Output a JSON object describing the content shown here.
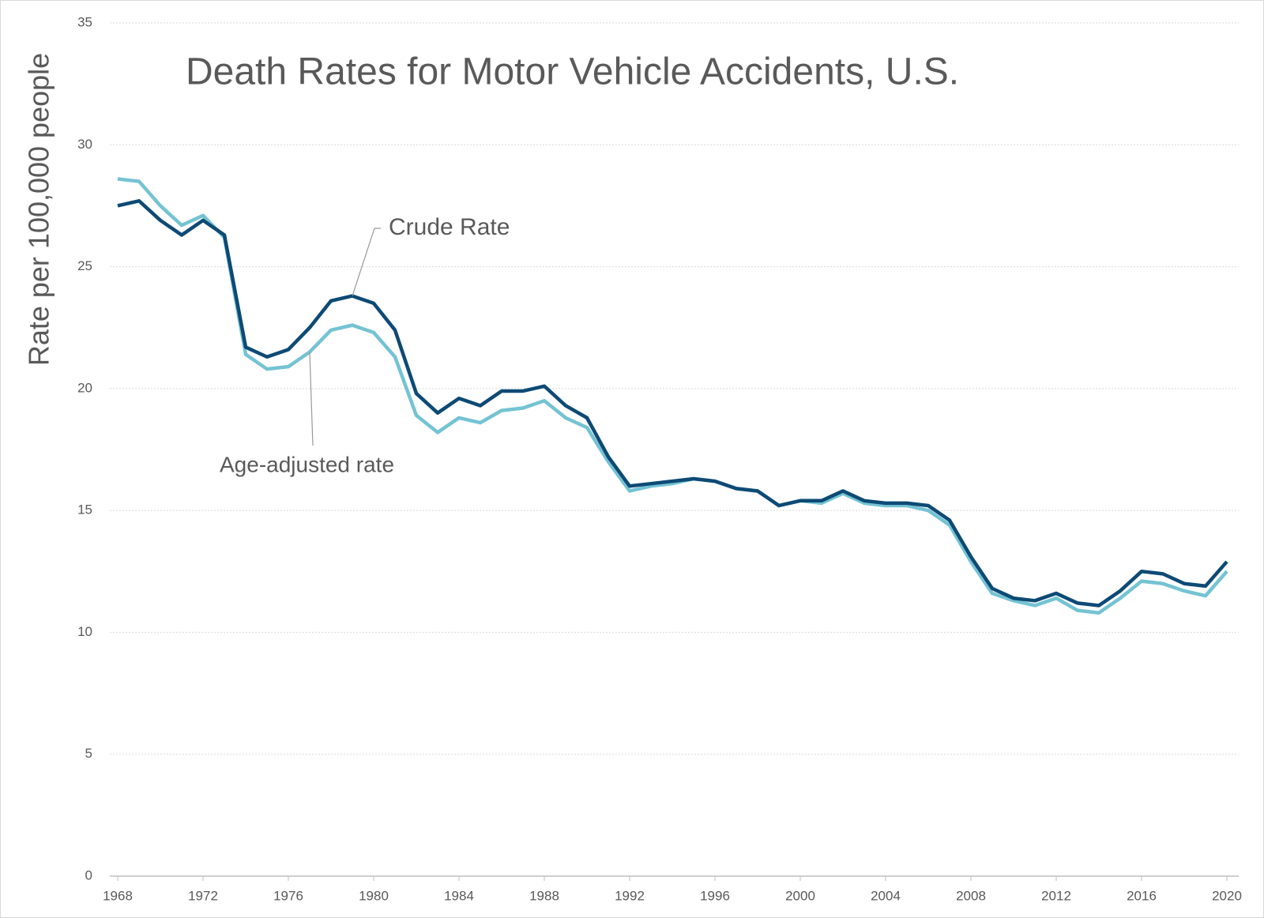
{
  "chart_data": {
    "type": "line",
    "title": "Death Rates for Motor Vehicle Accidents, U.S.",
    "y_label": "Rate per 100,000 people",
    "x": [
      1968,
      1969,
      1970,
      1971,
      1972,
      1973,
      1974,
      1975,
      1976,
      1977,
      1978,
      1979,
      1980,
      1981,
      1982,
      1983,
      1984,
      1985,
      1986,
      1987,
      1988,
      1989,
      1990,
      1991,
      1992,
      1993,
      1994,
      1995,
      1996,
      1997,
      1998,
      1999,
      2000,
      2001,
      2002,
      2003,
      2004,
      2005,
      2006,
      2007,
      2008,
      2009,
      2010,
      2011,
      2012,
      2013,
      2014,
      2015,
      2016,
      2017,
      2018,
      2019,
      2020
    ],
    "series": [
      {
        "name": "Crude Rate",
        "color": "#0d4a75",
        "values": [
          27.5,
          27.7,
          26.9,
          26.3,
          26.9,
          26.3,
          21.7,
          21.3,
          21.6,
          22.5,
          23.6,
          23.8,
          23.5,
          22.4,
          19.8,
          19.0,
          19.6,
          19.3,
          19.9,
          19.9,
          20.1,
          19.3,
          18.8,
          17.2,
          16.0,
          16.1,
          16.2,
          16.3,
          16.2,
          15.9,
          15.8,
          15.2,
          15.4,
          15.4,
          15.8,
          15.4,
          15.3,
          15.3,
          15.2,
          14.6,
          13.1,
          11.8,
          11.4,
          11.3,
          11.6,
          11.2,
          11.1,
          11.7,
          12.5,
          12.4,
          12.0,
          11.9,
          12.9
        ]
      },
      {
        "name": "Age-adjusted rate",
        "color": "#74c3d3",
        "values": [
          28.6,
          28.5,
          27.5,
          26.7,
          27.1,
          26.2,
          21.4,
          20.8,
          20.9,
          21.5,
          22.4,
          22.6,
          22.3,
          21.3,
          18.9,
          18.2,
          18.8,
          18.6,
          19.1,
          19.2,
          19.5,
          18.8,
          18.4,
          17.0,
          15.8,
          16.0,
          16.1,
          16.3,
          16.2,
          15.9,
          15.8,
          15.2,
          15.4,
          15.3,
          15.7,
          15.3,
          15.2,
          15.2,
          15.0,
          14.4,
          12.9,
          11.6,
          11.3,
          11.1,
          11.4,
          10.9,
          10.8,
          11.4,
          12.1,
          12.0,
          11.7,
          11.5,
          12.5
        ]
      }
    ],
    "xlim": [
      1968,
      2020
    ],
    "xticks": [
      1968,
      1972,
      1976,
      1980,
      1984,
      1988,
      1992,
      1996,
      2000,
      2004,
      2008,
      2012,
      2016,
      2020
    ],
    "ylim": [
      0,
      35
    ],
    "yticks": [
      0,
      5,
      10,
      15,
      20,
      25,
      30,
      35
    ],
    "grid": true
  }
}
